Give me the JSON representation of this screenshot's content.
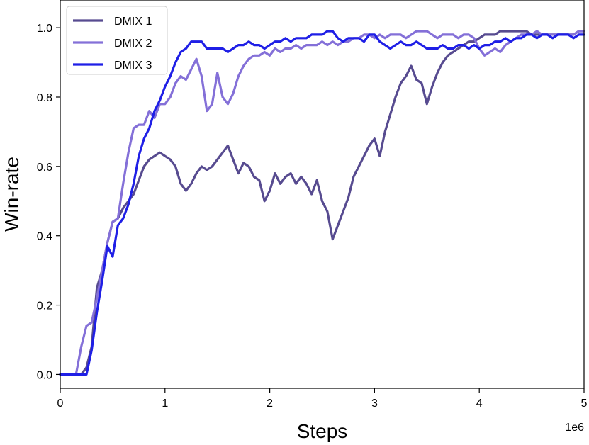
{
  "chart_data": {
    "type": "line",
    "xlabel": "Steps",
    "ylabel": "Win-rate",
    "x_offset_label": "1e6",
    "xlim": [
      0,
      5
    ],
    "ylim": [
      -0.04,
      1.08
    ],
    "xticks": [
      0,
      1,
      2,
      3,
      4,
      5
    ],
    "xtick_labels": [
      "0",
      "1",
      "2",
      "3",
      "4",
      "5"
    ],
    "yticks": [
      0.0,
      0.2,
      0.4,
      0.6,
      0.8,
      1.0
    ],
    "ytick_labels": [
      "0.0",
      "0.2",
      "0.4",
      "0.6",
      "0.8",
      "1.0"
    ],
    "grid": false,
    "legend_position": "top-left",
    "series": [
      {
        "name": "DMIX 1",
        "color": "#574b90",
        "points": [
          [
            0,
            0
          ],
          [
            0.2,
            0
          ],
          [
            0.25,
            0.02
          ],
          [
            0.3,
            0.08
          ],
          [
            0.35,
            0.25
          ],
          [
            0.4,
            0.3
          ],
          [
            0.45,
            0.38
          ],
          [
            0.5,
            0.44
          ],
          [
            0.55,
            0.45
          ],
          [
            0.6,
            0.48
          ],
          [
            0.65,
            0.5
          ],
          [
            0.7,
            0.52
          ],
          [
            0.75,
            0.56
          ],
          [
            0.8,
            0.6
          ],
          [
            0.85,
            0.62
          ],
          [
            0.9,
            0.63
          ],
          [
            0.95,
            0.64
          ],
          [
            1.0,
            0.63
          ],
          [
            1.05,
            0.62
          ],
          [
            1.1,
            0.6
          ],
          [
            1.15,
            0.55
          ],
          [
            1.2,
            0.53
          ],
          [
            1.25,
            0.55
          ],
          [
            1.3,
            0.58
          ],
          [
            1.35,
            0.6
          ],
          [
            1.4,
            0.59
          ],
          [
            1.45,
            0.6
          ],
          [
            1.5,
            0.62
          ],
          [
            1.55,
            0.64
          ],
          [
            1.6,
            0.66
          ],
          [
            1.65,
            0.62
          ],
          [
            1.7,
            0.58
          ],
          [
            1.75,
            0.61
          ],
          [
            1.8,
            0.6
          ],
          [
            1.85,
            0.57
          ],
          [
            1.9,
            0.56
          ],
          [
            1.95,
            0.5
          ],
          [
            2.0,
            0.53
          ],
          [
            2.05,
            0.58
          ],
          [
            2.1,
            0.55
          ],
          [
            2.15,
            0.57
          ],
          [
            2.2,
            0.58
          ],
          [
            2.25,
            0.55
          ],
          [
            2.3,
            0.57
          ],
          [
            2.35,
            0.55
          ],
          [
            2.4,
            0.52
          ],
          [
            2.45,
            0.56
          ],
          [
            2.5,
            0.5
          ],
          [
            2.55,
            0.47
          ],
          [
            2.6,
            0.39
          ],
          [
            2.65,
            0.43
          ],
          [
            2.7,
            0.47
          ],
          [
            2.75,
            0.51
          ],
          [
            2.8,
            0.57
          ],
          [
            2.85,
            0.6
          ],
          [
            2.9,
            0.63
          ],
          [
            2.95,
            0.66
          ],
          [
            3.0,
            0.68
          ],
          [
            3.05,
            0.63
          ],
          [
            3.1,
            0.7
          ],
          [
            3.15,
            0.75
          ],
          [
            3.2,
            0.8
          ],
          [
            3.25,
            0.84
          ],
          [
            3.3,
            0.86
          ],
          [
            3.35,
            0.89
          ],
          [
            3.4,
            0.85
          ],
          [
            3.45,
            0.84
          ],
          [
            3.5,
            0.78
          ],
          [
            3.55,
            0.83
          ],
          [
            3.6,
            0.87
          ],
          [
            3.65,
            0.9
          ],
          [
            3.7,
            0.92
          ],
          [
            3.75,
            0.93
          ],
          [
            3.8,
            0.94
          ],
          [
            3.85,
            0.95
          ],
          [
            3.9,
            0.96
          ],
          [
            3.95,
            0.96
          ],
          [
            4.0,
            0.97
          ],
          [
            4.05,
            0.98
          ],
          [
            4.1,
            0.98
          ],
          [
            4.15,
            0.98
          ],
          [
            4.2,
            0.99
          ],
          [
            4.25,
            0.99
          ],
          [
            4.3,
            0.99
          ],
          [
            4.35,
            0.99
          ],
          [
            4.4,
            0.99
          ],
          [
            4.45,
            0.99
          ],
          [
            4.5,
            0.98
          ],
          [
            4.55,
            0.98
          ],
          [
            4.6,
            0.98
          ],
          [
            4.65,
            0.98
          ],
          [
            4.7,
            0.98
          ],
          [
            4.75,
            0.98
          ],
          [
            4.8,
            0.98
          ],
          [
            4.85,
            0.98
          ],
          [
            4.9,
            0.98
          ],
          [
            4.95,
            0.99
          ],
          [
            5.0,
            0.99
          ]
        ]
      },
      {
        "name": "DMIX 2",
        "color": "#8470d8",
        "points": [
          [
            0,
            0
          ],
          [
            0.15,
            0
          ],
          [
            0.2,
            0.08
          ],
          [
            0.25,
            0.14
          ],
          [
            0.3,
            0.15
          ],
          [
            0.35,
            0.22
          ],
          [
            0.4,
            0.3
          ],
          [
            0.45,
            0.38
          ],
          [
            0.5,
            0.44
          ],
          [
            0.55,
            0.45
          ],
          [
            0.6,
            0.55
          ],
          [
            0.65,
            0.64
          ],
          [
            0.7,
            0.71
          ],
          [
            0.75,
            0.72
          ],
          [
            0.8,
            0.72
          ],
          [
            0.85,
            0.76
          ],
          [
            0.9,
            0.74
          ],
          [
            0.95,
            0.78
          ],
          [
            1.0,
            0.78
          ],
          [
            1.05,
            0.8
          ],
          [
            1.1,
            0.84
          ],
          [
            1.15,
            0.86
          ],
          [
            1.2,
            0.85
          ],
          [
            1.25,
            0.88
          ],
          [
            1.3,
            0.91
          ],
          [
            1.35,
            0.86
          ],
          [
            1.4,
            0.76
          ],
          [
            1.45,
            0.78
          ],
          [
            1.5,
            0.87
          ],
          [
            1.55,
            0.8
          ],
          [
            1.6,
            0.78
          ],
          [
            1.65,
            0.81
          ],
          [
            1.7,
            0.86
          ],
          [
            1.75,
            0.89
          ],
          [
            1.8,
            0.91
          ],
          [
            1.85,
            0.92
          ],
          [
            1.9,
            0.92
          ],
          [
            1.95,
            0.93
          ],
          [
            2.0,
            0.92
          ],
          [
            2.05,
            0.94
          ],
          [
            2.1,
            0.93
          ],
          [
            2.15,
            0.94
          ],
          [
            2.2,
            0.94
          ],
          [
            2.25,
            0.95
          ],
          [
            2.3,
            0.94
          ],
          [
            2.35,
            0.95
          ],
          [
            2.4,
            0.95
          ],
          [
            2.45,
            0.95
          ],
          [
            2.5,
            0.96
          ],
          [
            2.55,
            0.95
          ],
          [
            2.6,
            0.96
          ],
          [
            2.65,
            0.95
          ],
          [
            2.7,
            0.96
          ],
          [
            2.75,
            0.96
          ],
          [
            2.8,
            0.97
          ],
          [
            2.85,
            0.97
          ],
          [
            2.9,
            0.98
          ],
          [
            2.95,
            0.98
          ],
          [
            3.0,
            0.97
          ],
          [
            3.05,
            0.98
          ],
          [
            3.1,
            0.97
          ],
          [
            3.15,
            0.98
          ],
          [
            3.2,
            0.98
          ],
          [
            3.25,
            0.98
          ],
          [
            3.3,
            0.97
          ],
          [
            3.35,
            0.98
          ],
          [
            3.4,
            0.99
          ],
          [
            3.45,
            0.99
          ],
          [
            3.5,
            0.99
          ],
          [
            3.55,
            0.98
          ],
          [
            3.6,
            0.97
          ],
          [
            3.65,
            0.98
          ],
          [
            3.7,
            0.98
          ],
          [
            3.75,
            0.98
          ],
          [
            3.8,
            0.97
          ],
          [
            3.85,
            0.98
          ],
          [
            3.9,
            0.98
          ],
          [
            3.95,
            0.97
          ],
          [
            4.0,
            0.94
          ],
          [
            4.05,
            0.92
          ],
          [
            4.1,
            0.93
          ],
          [
            4.15,
            0.94
          ],
          [
            4.2,
            0.93
          ],
          [
            4.25,
            0.95
          ],
          [
            4.3,
            0.96
          ],
          [
            4.35,
            0.97
          ],
          [
            4.4,
            0.98
          ],
          [
            4.45,
            0.98
          ],
          [
            4.5,
            0.98
          ],
          [
            4.55,
            0.99
          ],
          [
            4.6,
            0.98
          ],
          [
            4.65,
            0.98
          ],
          [
            4.7,
            0.98
          ],
          [
            4.75,
            0.98
          ],
          [
            4.8,
            0.98
          ],
          [
            4.85,
            0.98
          ],
          [
            4.9,
            0.98
          ],
          [
            4.95,
            0.99
          ],
          [
            5.0,
            0.99
          ]
        ]
      },
      {
        "name": "DMIX 3",
        "color": "#1f1fe6",
        "points": [
          [
            0,
            0
          ],
          [
            0.25,
            0
          ],
          [
            0.3,
            0.07
          ],
          [
            0.35,
            0.18
          ],
          [
            0.4,
            0.27
          ],
          [
            0.45,
            0.37
          ],
          [
            0.5,
            0.34
          ],
          [
            0.55,
            0.43
          ],
          [
            0.6,
            0.45
          ],
          [
            0.65,
            0.49
          ],
          [
            0.7,
            0.55
          ],
          [
            0.75,
            0.63
          ],
          [
            0.8,
            0.68
          ],
          [
            0.85,
            0.71
          ],
          [
            0.9,
            0.76
          ],
          [
            0.95,
            0.79
          ],
          [
            1.0,
            0.83
          ],
          [
            1.05,
            0.86
          ],
          [
            1.1,
            0.9
          ],
          [
            1.15,
            0.93
          ],
          [
            1.2,
            0.94
          ],
          [
            1.25,
            0.96
          ],
          [
            1.3,
            0.96
          ],
          [
            1.35,
            0.96
          ],
          [
            1.4,
            0.94
          ],
          [
            1.45,
            0.94
          ],
          [
            1.5,
            0.94
          ],
          [
            1.55,
            0.94
          ],
          [
            1.6,
            0.93
          ],
          [
            1.65,
            0.94
          ],
          [
            1.7,
            0.95
          ],
          [
            1.75,
            0.95
          ],
          [
            1.8,
            0.96
          ],
          [
            1.85,
            0.95
          ],
          [
            1.9,
            0.95
          ],
          [
            1.95,
            0.94
          ],
          [
            2.0,
            0.95
          ],
          [
            2.05,
            0.96
          ],
          [
            2.1,
            0.96
          ],
          [
            2.15,
            0.97
          ],
          [
            2.2,
            0.96
          ],
          [
            2.25,
            0.97
          ],
          [
            2.3,
            0.97
          ],
          [
            2.35,
            0.97
          ],
          [
            2.4,
            0.98
          ],
          [
            2.45,
            0.98
          ],
          [
            2.5,
            0.98
          ],
          [
            2.55,
            0.99
          ],
          [
            2.6,
            0.99
          ],
          [
            2.65,
            0.97
          ],
          [
            2.7,
            0.96
          ],
          [
            2.75,
            0.97
          ],
          [
            2.8,
            0.97
          ],
          [
            2.85,
            0.97
          ],
          [
            2.9,
            0.96
          ],
          [
            2.95,
            0.98
          ],
          [
            3.0,
            0.98
          ],
          [
            3.05,
            0.96
          ],
          [
            3.1,
            0.95
          ],
          [
            3.15,
            0.94
          ],
          [
            3.2,
            0.95
          ],
          [
            3.25,
            0.96
          ],
          [
            3.3,
            0.95
          ],
          [
            3.35,
            0.95
          ],
          [
            3.4,
            0.96
          ],
          [
            3.45,
            0.95
          ],
          [
            3.5,
            0.94
          ],
          [
            3.55,
            0.94
          ],
          [
            3.6,
            0.94
          ],
          [
            3.65,
            0.95
          ],
          [
            3.7,
            0.94
          ],
          [
            3.75,
            0.94
          ],
          [
            3.8,
            0.95
          ],
          [
            3.85,
            0.95
          ],
          [
            3.9,
            0.94
          ],
          [
            3.95,
            0.95
          ],
          [
            4.0,
            0.94
          ],
          [
            4.05,
            0.95
          ],
          [
            4.1,
            0.95
          ],
          [
            4.15,
            0.96
          ],
          [
            4.2,
            0.96
          ],
          [
            4.25,
            0.97
          ],
          [
            4.3,
            0.96
          ],
          [
            4.35,
            0.97
          ],
          [
            4.4,
            0.97
          ],
          [
            4.45,
            0.98
          ],
          [
            4.5,
            0.98
          ],
          [
            4.55,
            0.97
          ],
          [
            4.6,
            0.98
          ],
          [
            4.65,
            0.98
          ],
          [
            4.7,
            0.97
          ],
          [
            4.75,
            0.98
          ],
          [
            4.8,
            0.98
          ],
          [
            4.85,
            0.98
          ],
          [
            4.9,
            0.97
          ],
          [
            4.95,
            0.98
          ],
          [
            5.0,
            0.98
          ]
        ]
      }
    ]
  }
}
